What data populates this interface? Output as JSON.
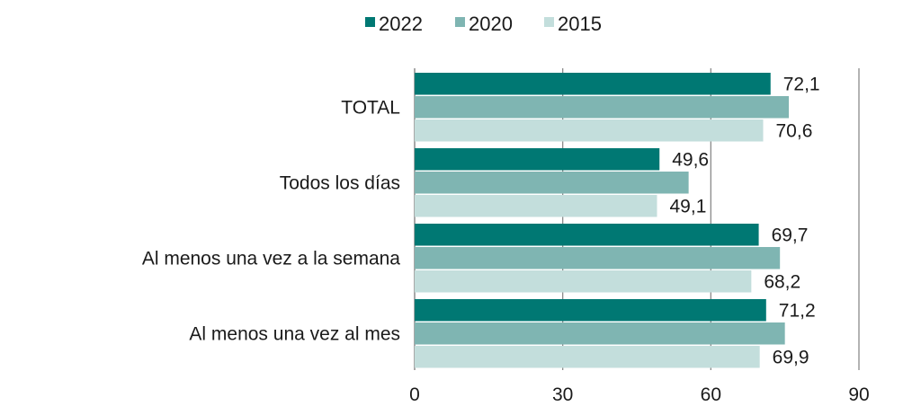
{
  "chart_data": {
    "type": "bar",
    "orientation": "horizontal",
    "categories": [
      "TOTAL",
      "Todos los días",
      "Al menos una vez a la semana",
      "Al menos una vez al mes"
    ],
    "series": [
      {
        "name": "2022",
        "color": "#007873",
        "values": [
          72.1,
          49.6,
          69.7,
          71.2
        ],
        "labels": [
          "72,1",
          "49,6",
          "69,7",
          "71,2"
        ]
      },
      {
        "name": "2020",
        "color": "#7fb5b2",
        "values": [
          75.8,
          55.5,
          74.0,
          75.0
        ],
        "labels": []
      },
      {
        "name": "2015",
        "color": "#c3dedc",
        "values": [
          70.6,
          49.1,
          68.2,
          69.9
        ],
        "labels": [
          "70,6",
          "49,1",
          "68,2",
          "69,9"
        ]
      }
    ],
    "x_ticks": [
      "0",
      "30",
      "60",
      "90"
    ],
    "xlim": [
      0,
      90
    ],
    "grid": true,
    "legend_position": "top-center"
  }
}
